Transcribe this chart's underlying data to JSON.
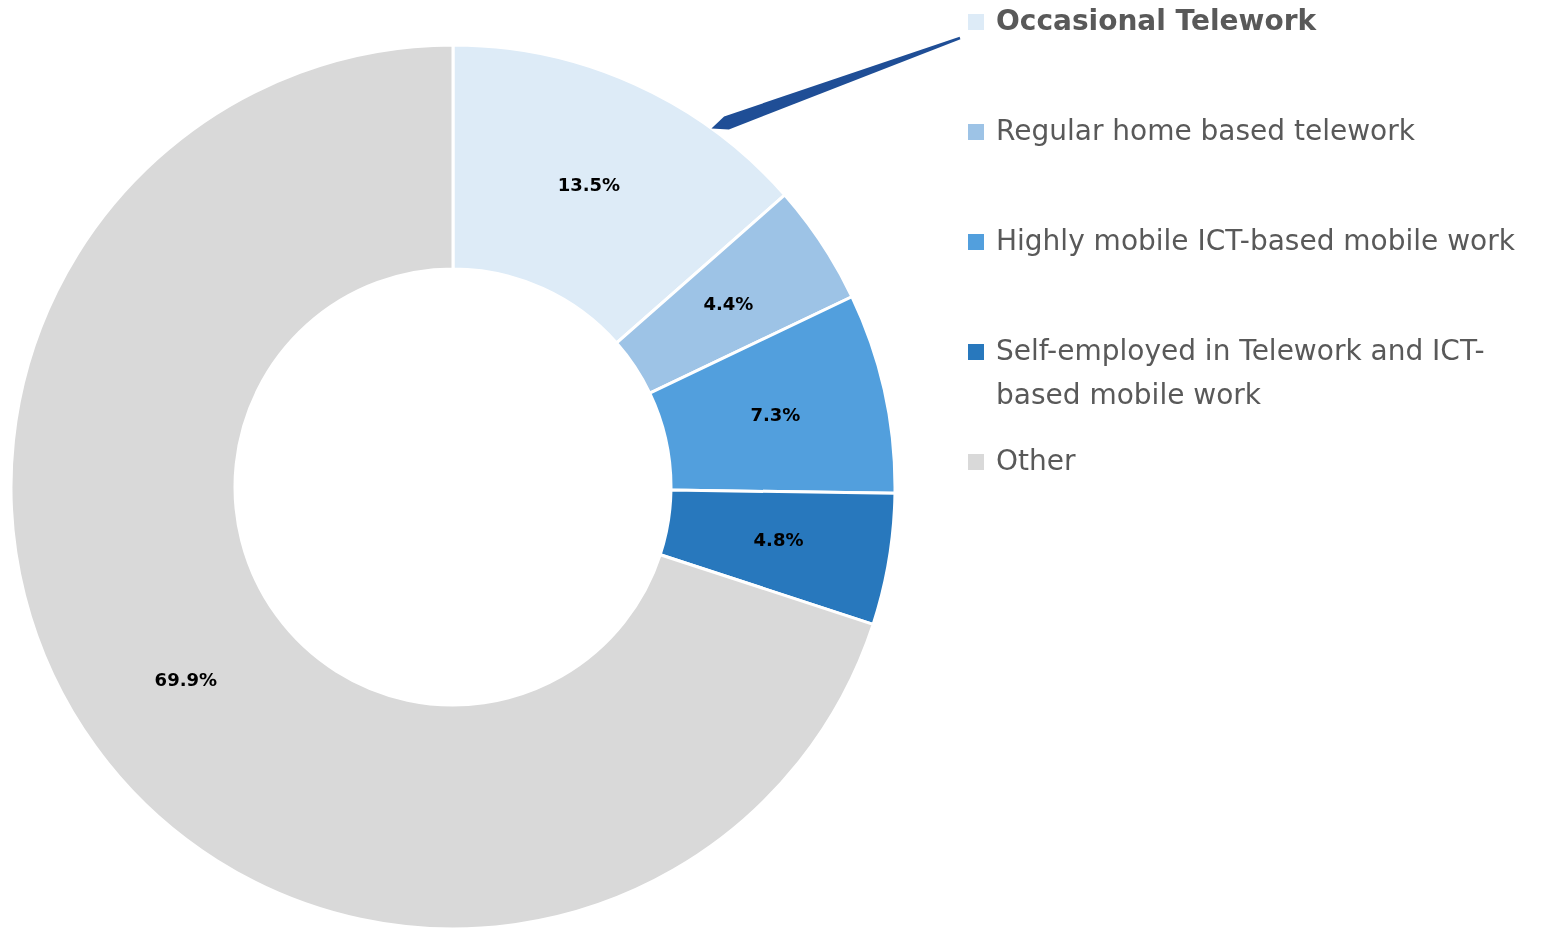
{
  "chart_data": {
    "type": "donut",
    "categories": [
      "Occasional Telework",
      "Regular home based telework",
      "Highly mobile ICT-based mobile work",
      "Self-employed in Telework and ICT-based mobile work",
      "Other"
    ],
    "values": [
      13.5,
      4.4,
      7.3,
      4.8,
      69.9
    ],
    "colors": [
      "#ddebf7",
      "#9dc3e6",
      "#529fdd",
      "#2878bd",
      "#d9d9d9"
    ],
    "value_labels": [
      "13.5%",
      "4.4%",
      "7.3%",
      "4.8%",
      "69.9%"
    ],
    "legend": "right"
  }
}
